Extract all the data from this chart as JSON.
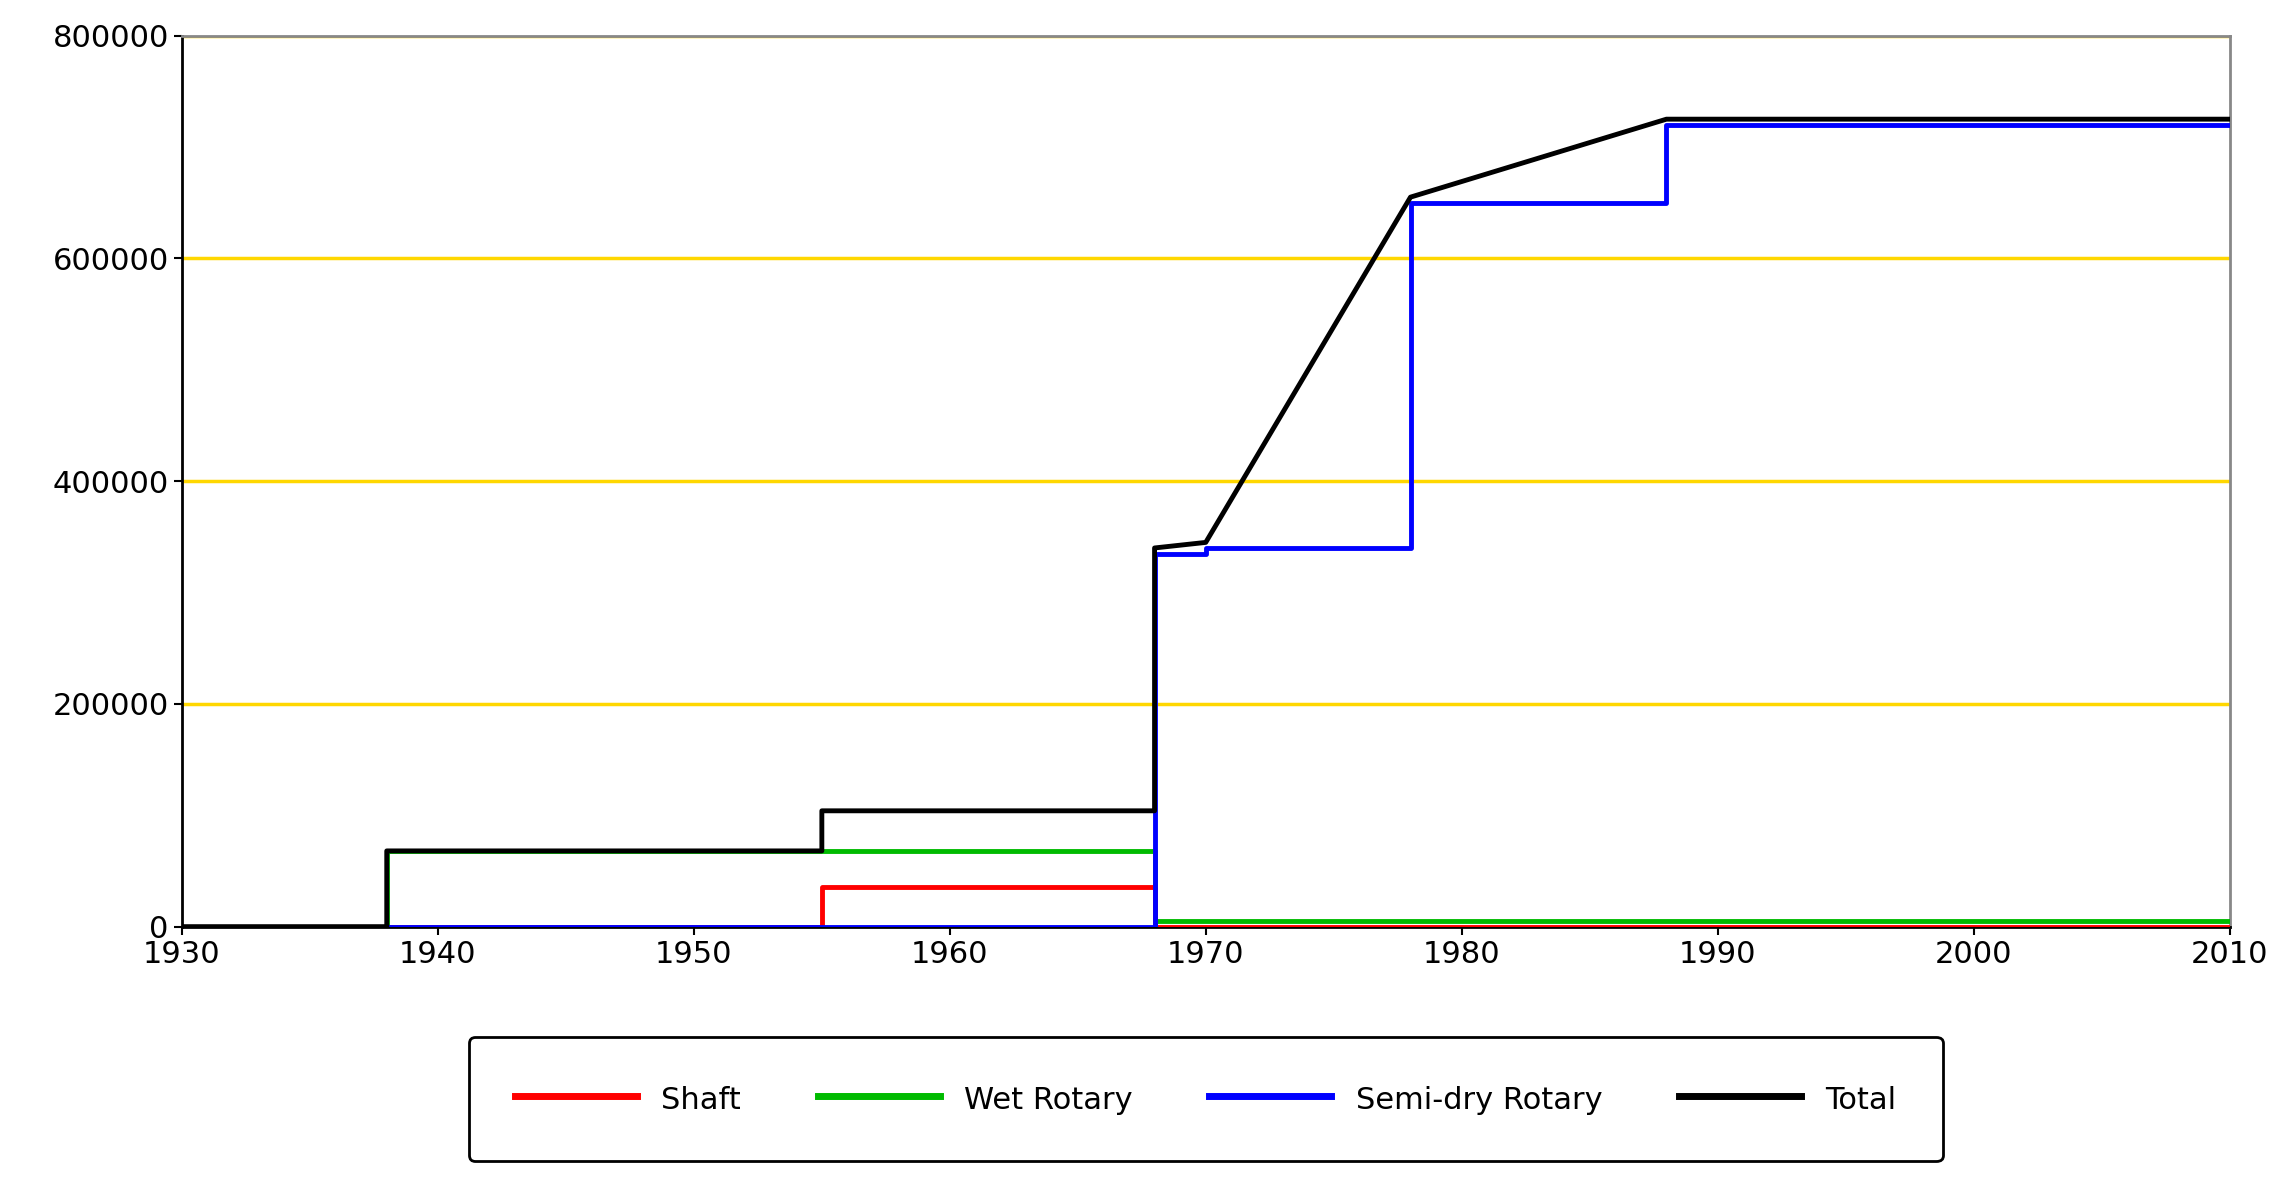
{
  "shaft_x": [
    1930,
    1938,
    1938,
    1955,
    1955,
    1965,
    1965,
    1968,
    1968,
    2010
  ],
  "shaft_y": [
    0,
    0,
    0,
    0,
    36000,
    36000,
    36000,
    36000,
    0,
    0
  ],
  "wet_rotary_x": [
    1930,
    1938,
    1938,
    1968,
    1968,
    2010
  ],
  "wet_rotary_y": [
    0,
    0,
    68000,
    68000,
    5000,
    5000
  ],
  "semi_dry_x": [
    1930,
    1968,
    1968,
    1970,
    1970,
    1978,
    1978,
    1988,
    1988,
    2010
  ],
  "semi_dry_y": [
    0,
    0,
    335000,
    335000,
    340000,
    340000,
    650000,
    650000,
    720000,
    720000
  ],
  "total_x": [
    1930,
    1938,
    1938,
    1955,
    1955,
    1965,
    1965,
    1968,
    1968,
    1970,
    1970,
    1978,
    1978,
    1988,
    1988,
    2010
  ],
  "total_y": [
    0,
    0,
    68000,
    68000,
    104000,
    104000,
    104000,
    104000,
    340000,
    345000,
    345000,
    655000,
    655000,
    725000,
    725000,
    725000
  ],
  "shaft_color": "#ff0000",
  "wet_color": "#00bb00",
  "semi_dry_color": "#0000ff",
  "total_color": "#000000",
  "grid_color": "#ffd700",
  "xlim": [
    1930,
    2010
  ],
  "ylim": [
    0,
    800000
  ],
  "yticks": [
    0,
    200000,
    400000,
    600000,
    800000
  ],
  "xticks": [
    1930,
    1940,
    1950,
    1960,
    1970,
    1980,
    1990,
    2000,
    2010
  ],
  "linewidth": 3.5,
  "legend_labels": [
    "Shaft",
    "Wet Rotary",
    "Semi-dry Rotary",
    "Total"
  ],
  "legend_colors": [
    "#ff0000",
    "#00bb00",
    "#0000ff",
    "#000000"
  ],
  "tick_labelsize": 22,
  "legend_fontsize": 22
}
